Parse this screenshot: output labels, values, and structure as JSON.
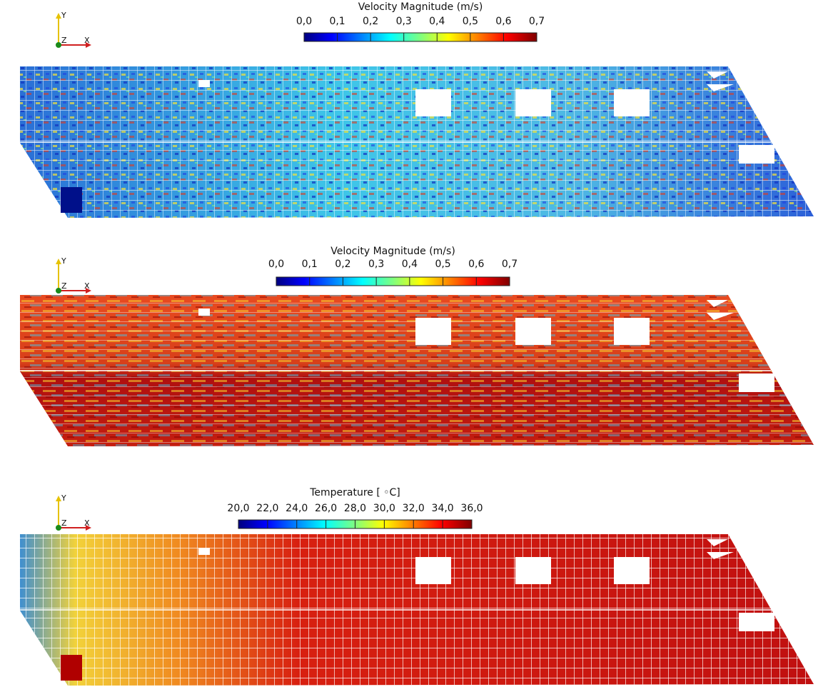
{
  "panels": [
    {
      "colorbar": {
        "title": "Velocity Magnitude (m/s)",
        "ticks": [
          "0,0",
          "0,1",
          "0,2",
          "0,3",
          "0,4",
          "0,5",
          "0,6",
          "0,7"
        ]
      },
      "axes": {
        "y": "Y",
        "z": "Z",
        "x": "X"
      }
    },
    {
      "colorbar": {
        "title": "Velocity Magnitude (m/s)",
        "ticks": [
          "0,0",
          "0,1",
          "0,2",
          "0,3",
          "0,4",
          "0,5",
          "0,6",
          "0,7"
        ]
      },
      "axes": {
        "y": "Y",
        "z": "Z",
        "x": "X"
      }
    },
    {
      "colorbar": {
        "title": "Temperature [ ◦C]",
        "ticks": [
          "20,0",
          "22,0",
          "24,0",
          "26,0",
          "28,0",
          "30,0",
          "32,0",
          "34,0",
          "36,0"
        ]
      },
      "axes": {
        "y": "Y",
        "z": "Z",
        "x": "X"
      }
    }
  ]
}
